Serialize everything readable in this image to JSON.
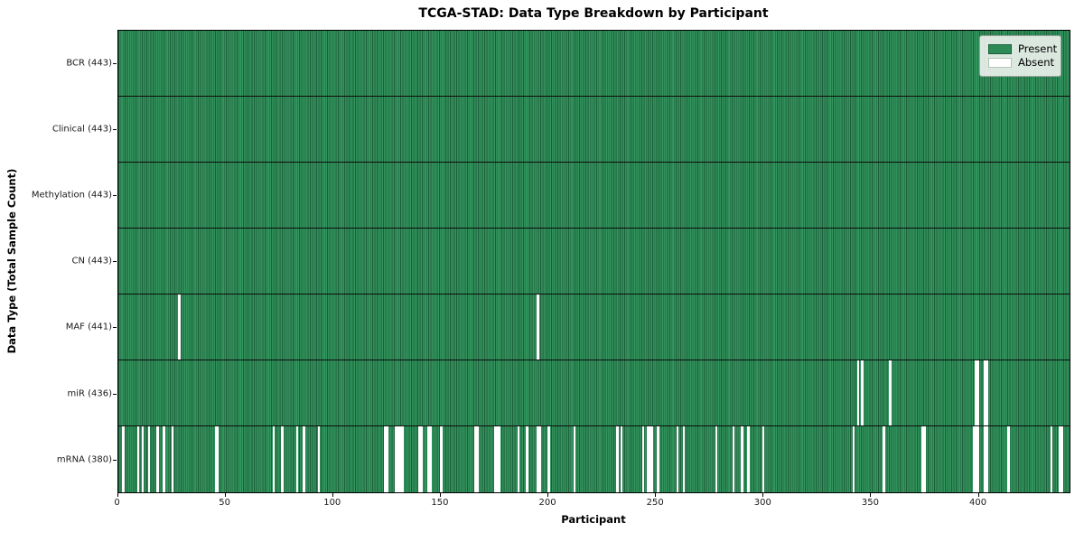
{
  "chart_data": {
    "type": "heatmap",
    "title": "TCGA-STAD: Data Type Breakdown by Participant",
    "xlabel": "Participant",
    "ylabel": "Data Type (Total Sample Count)",
    "x_ticks": [
      0,
      50,
      100,
      150,
      200,
      250,
      300,
      350,
      400
    ],
    "x_max": 443,
    "n_participants": 443,
    "grid": false,
    "legend_position": "upper right",
    "legend": [
      {
        "label": "Present",
        "color": "#2e8b57"
      },
      {
        "label": "Absent",
        "color": "#ffffff"
      }
    ],
    "rows": [
      {
        "label": "BCR (443)",
        "name": "BCR",
        "present_count": 443,
        "absent_participants": []
      },
      {
        "label": "Clinical (443)",
        "name": "Clinical",
        "present_count": 443,
        "absent_participants": []
      },
      {
        "label": "Methylation (443)",
        "name": "Methylation",
        "present_count": 443,
        "absent_participants": []
      },
      {
        "label": "CN (443)",
        "name": "CN",
        "present_count": 443,
        "absent_participants": []
      },
      {
        "label": "MAF (441)",
        "name": "MAF",
        "present_count": 441,
        "absent_participants": [
          28,
          195
        ]
      },
      {
        "label": "miR (436)",
        "name": "miR",
        "present_count": 436,
        "absent_participants": [
          344,
          346,
          359,
          399,
          400,
          403,
          404
        ]
      },
      {
        "label": "mRNA (380)",
        "name": "mRNA",
        "present_count": 380,
        "absent_participants": [
          2,
          9,
          11,
          14,
          18,
          21,
          25,
          45,
          46,
          72,
          76,
          83,
          86,
          93,
          124,
          125,
          129,
          130,
          131,
          132,
          140,
          141,
          144,
          145,
          150,
          166,
          167,
          175,
          176,
          177,
          186,
          190,
          195,
          196,
          200,
          212,
          232,
          234,
          244,
          246,
          247,
          248,
          251,
          260,
          263,
          278,
          286,
          290,
          293,
          300,
          342,
          356,
          374,
          375,
          398,
          399,
          400,
          403,
          404,
          414,
          434,
          438,
          439
        ]
      }
    ],
    "colors": {
      "present_fill": "#2e8b57",
      "present_edge": "#1d5e3a",
      "absent_fill": "#ffffff",
      "axis_line": "#000000",
      "background": "#ffffff"
    }
  }
}
